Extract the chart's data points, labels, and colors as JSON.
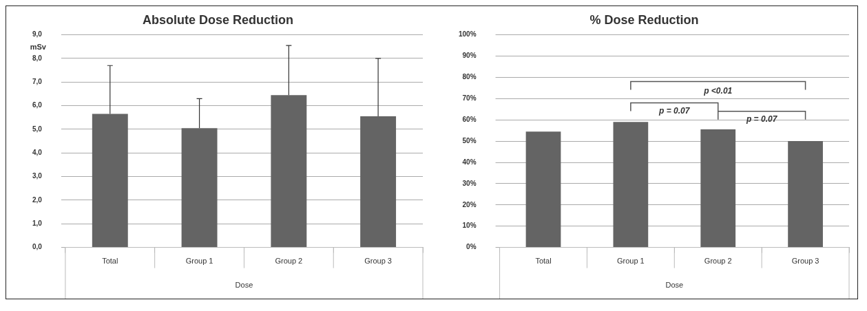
{
  "chart_data": [
    {
      "type": "bar",
      "title": "Absolute Dose Reduction",
      "ylabel": "mSv",
      "xlabel": "Dose",
      "categories": [
        "Total",
        "Group 1",
        "Group 2",
        "Group 3"
      ],
      "values": [
        5.65,
        5.05,
        6.45,
        5.55
      ],
      "color": "#646464",
      "errors": [
        [
          5.65,
          7.7
        ],
        [
          5.05,
          6.3
        ],
        [
          6.45,
          8.55
        ],
        [
          5.55,
          8.0
        ]
      ],
      "ylim": [
        0,
        9
      ],
      "yticks": [
        {
          "value": 0,
          "label": "0,0"
        },
        {
          "value": 1,
          "label": "1,0"
        },
        {
          "value": 2,
          "label": "2,0"
        },
        {
          "value": 3,
          "label": "3,0"
        },
        {
          "value": 4,
          "label": "4,0"
        },
        {
          "value": 5,
          "label": "5,0"
        },
        {
          "value": 6,
          "label": "6,0"
        },
        {
          "value": 7,
          "label": "7,0"
        },
        {
          "value": 8,
          "label": "8,0"
        },
        {
          "value": 9,
          "label": "9,0"
        }
      ],
      "grid": "y",
      "legend": false
    },
    {
      "type": "bar",
      "title": "% Dose Reduction",
      "xlabel": "Dose",
      "categories": [
        "Total",
        "Group 1",
        "Group 2",
        "Group 3"
      ],
      "values": [
        54.5,
        59,
        55.5,
        50
      ],
      "color": "#646464",
      "ylim": [
        0,
        100
      ],
      "yticks": [
        {
          "value": 0,
          "label": "0%"
        },
        {
          "value": 10,
          "label": "10%"
        },
        {
          "value": 20,
          "label": "20%"
        },
        {
          "value": 30,
          "label": "30%"
        },
        {
          "value": 40,
          "label": "40%"
        },
        {
          "value": 50,
          "label": "50%"
        },
        {
          "value": 60,
          "label": "60%"
        },
        {
          "value": 70,
          "label": "70%"
        },
        {
          "value": 80,
          "label": "80%"
        },
        {
          "value": 90,
          "label": "90%"
        },
        {
          "value": 100,
          "label": "100%"
        }
      ],
      "grid": "y",
      "legend": false,
      "annotations": [
        "p <0.01",
        "p = 0.07",
        "p = 0.07"
      ]
    }
  ]
}
